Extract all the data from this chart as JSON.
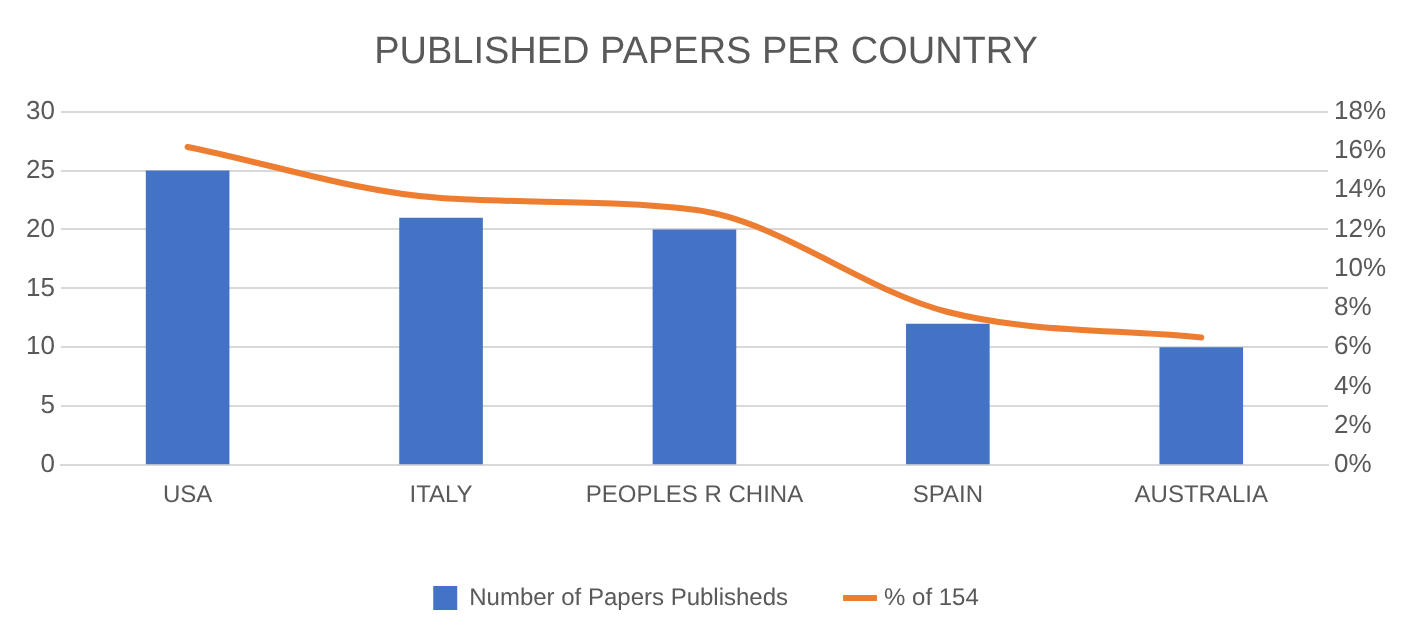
{
  "chart_data": {
    "type": "bar",
    "title": "PUBLISHED PAPERS PER COUNTRY",
    "categories": [
      "USA",
      "ITALY",
      "PEOPLES R CHINA",
      "SPAIN",
      "AUSTRALIA"
    ],
    "series": [
      {
        "name": "Number of Papers Publisheds",
        "color": "#4472c4",
        "values": [
          25,
          21,
          20,
          12,
          10
        ]
      },
      {
        "name": "% of 154",
        "type": "line",
        "axis": "y2",
        "color": "#ed7d31",
        "values": [
          16.2,
          13.6,
          13.0,
          7.8,
          6.5
        ]
      }
    ],
    "ylim": [
      0,
      30
    ],
    "yticks": [
      0,
      5,
      10,
      15,
      20,
      25,
      30
    ],
    "y2lim": [
      0,
      18
    ],
    "y2ticks": [
      {
        "value": 0,
        "label": "0%"
      },
      {
        "value": 2,
        "label": "2%"
      },
      {
        "value": 4,
        "label": "4%"
      },
      {
        "value": 6,
        "label": "6%"
      },
      {
        "value": 8,
        "label": "8%"
      },
      {
        "value": 10,
        "label": "10%"
      },
      {
        "value": 12,
        "label": "12%"
      },
      {
        "value": 14,
        "label": "14%"
      },
      {
        "value": 16,
        "label": "16%"
      },
      {
        "value": 18,
        "label": "18%"
      }
    ],
    "grid": "y",
    "legend": "bottom",
    "marker": "none"
  }
}
